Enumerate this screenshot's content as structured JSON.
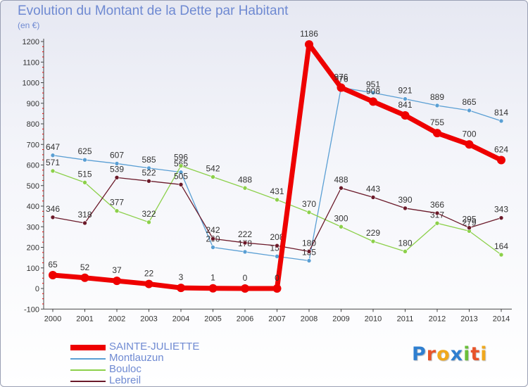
{
  "title": "Evolution du Montant de la Dette par Habitant",
  "subtitle": "(en €)",
  "logo": {
    "letters": [
      "P",
      "r",
      "o",
      "x",
      "i",
      "t",
      "i"
    ],
    "colors": [
      "#2f7fd0",
      "#e8542a",
      "#f0a81c",
      "#2f7fd0",
      "#6abf3a",
      "#e8542a",
      "#f0a81c"
    ]
  },
  "chart_data": {
    "type": "line",
    "title": "Evolution du Montant de la Dette par Habitant",
    "ylabel": "(en €)",
    "xlabel": "",
    "x": [
      "2000",
      "2001",
      "2002",
      "2003",
      "2004",
      "2005",
      "2006",
      "2007",
      "2008",
      "2009",
      "2010",
      "2011",
      "2012",
      "2013",
      "2014"
    ],
    "ylim": [
      -100,
      1200
    ],
    "yticks": [
      "-100",
      "0",
      "100",
      "200",
      "300",
      "400",
      "500",
      "600",
      "700",
      "800",
      "900",
      "1000",
      "1100",
      "1200"
    ],
    "grid": false,
    "legend_position": "bottom-left",
    "series": [
      {
        "name": "SAINTE-JULIETTE",
        "color": "#ee0000",
        "thick": true,
        "values": [
          65,
          52,
          37,
          22,
          3,
          1,
          0,
          0,
          1186,
          976,
          908,
          841,
          755,
          700,
          624
        ],
        "labels": [
          "65",
          "52",
          "37",
          "22",
          "3",
          "1",
          "0",
          "0",
          "1186",
          "976",
          "908",
          "841",
          "755",
          "700",
          "624"
        ]
      },
      {
        "name": "Montlauzun",
        "color": "#5a9fd4",
        "thick": false,
        "values": [
          647,
          625,
          607,
          585,
          565,
          200,
          178,
          156,
          135,
          976,
          951,
          921,
          889,
          865,
          814
        ],
        "labels": [
          "647",
          "625",
          "607",
          "585",
          "565",
          "200",
          "178",
          "156",
          "135",
          "976",
          "951",
          "921",
          "889",
          "865",
          "814"
        ]
      },
      {
        "name": "Bouloc",
        "color": "#8cd04a",
        "thick": false,
        "values": [
          571,
          515,
          377,
          322,
          596,
          542,
          488,
          431,
          370,
          300,
          229,
          180,
          317,
          279,
          164
        ],
        "labels": [
          "571",
          "515",
          "377",
          "322",
          "596",
          "542",
          "488",
          "431",
          "370",
          "300",
          "229",
          "180",
          "317",
          "279",
          "164"
        ]
      },
      {
        "name": "Lebreil",
        "color": "#6b1a2a",
        "thick": false,
        "values": [
          346,
          318,
          539,
          522,
          505,
          242,
          222,
          208,
          180,
          488,
          443,
          390,
          366,
          295,
          343
        ],
        "labels": [
          "346",
          "318",
          "539",
          "522",
          "505",
          "242",
          "222",
          "208",
          "180",
          "488",
          "443",
          "390",
          "366",
          "295",
          "343"
        ]
      }
    ]
  }
}
